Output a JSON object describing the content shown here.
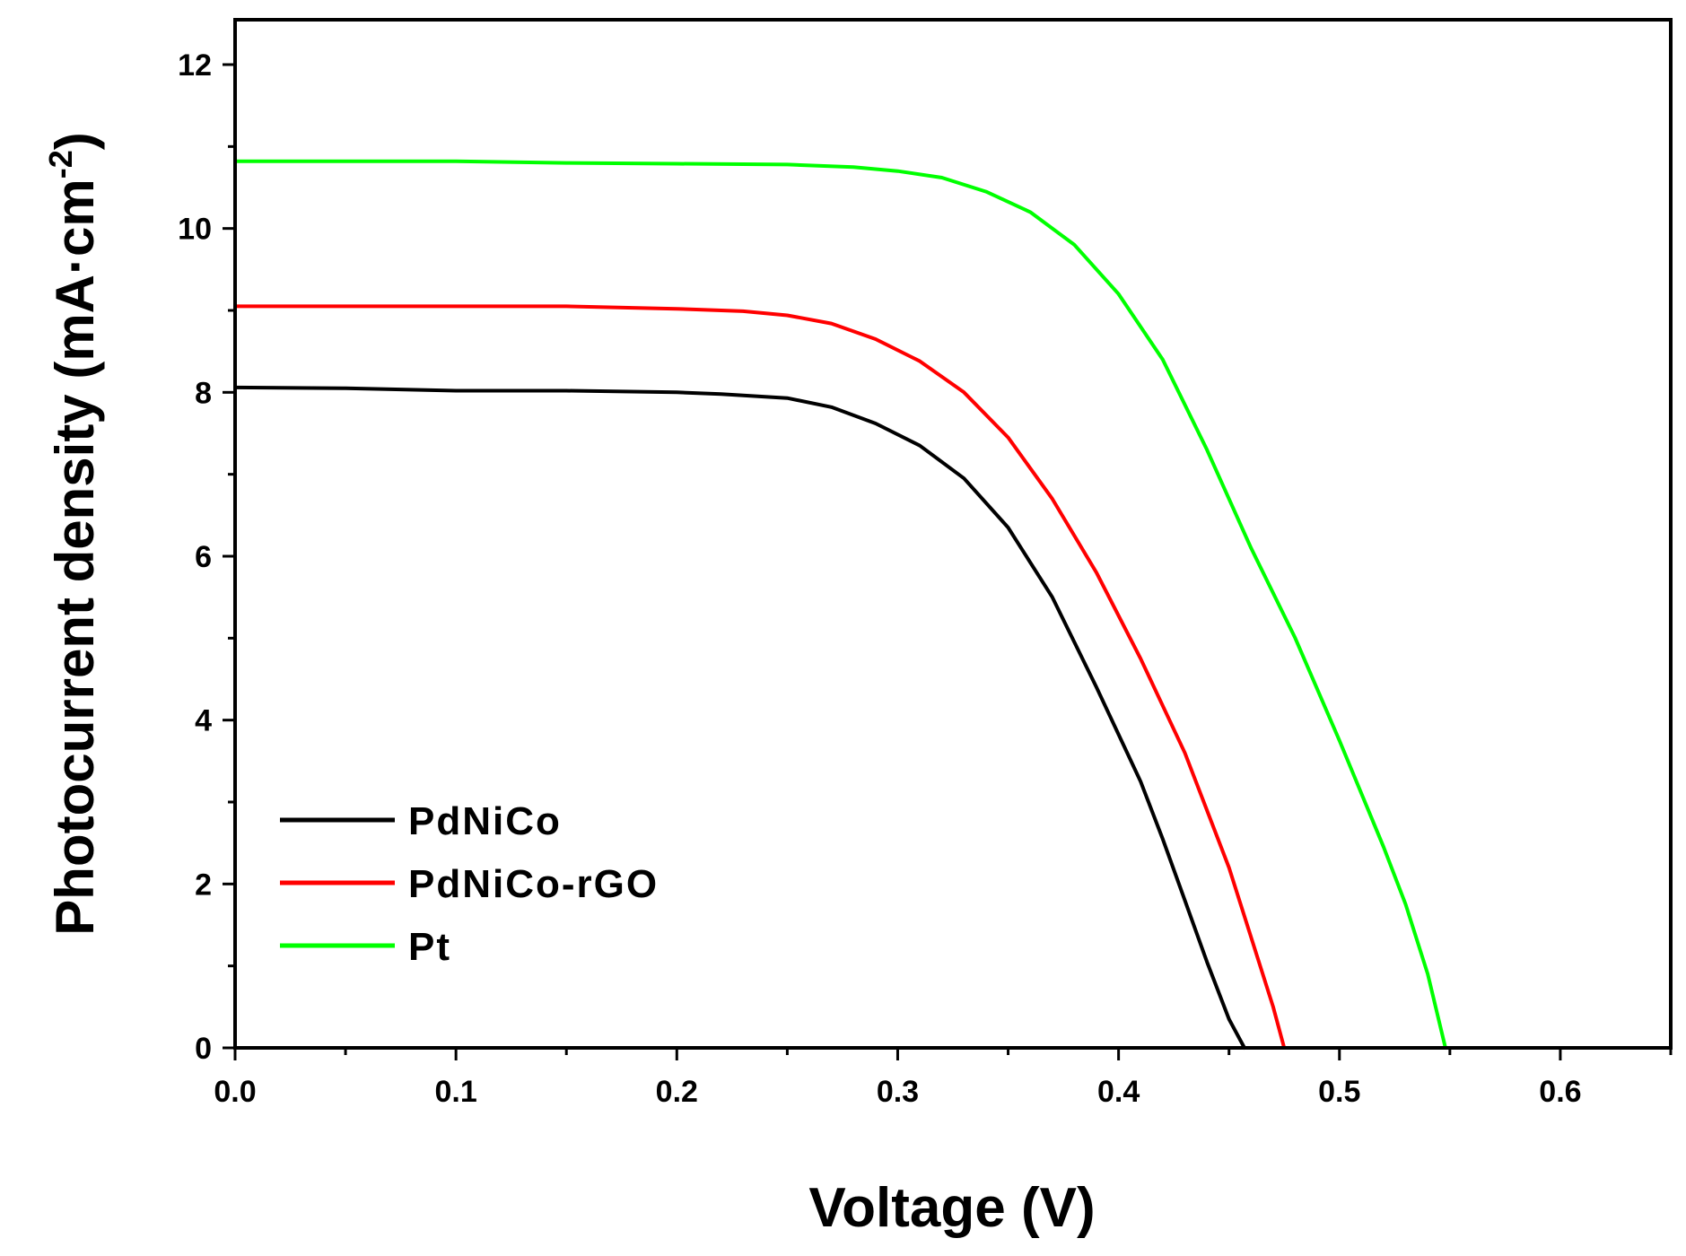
{
  "chart_data": {
    "type": "line",
    "title": "",
    "xlabel": "Voltage (V)",
    "ylabel": {
      "main": "Photocurrent density (mA·cm",
      "superscript": "-2",
      "close": ")"
    },
    "xlim": [
      0.0,
      0.65
    ],
    "ylim": [
      0,
      12.2
    ],
    "x_ticks": [
      {
        "value": 0.0,
        "label": "0.0"
      },
      {
        "value": 0.1,
        "label": "0.1"
      },
      {
        "value": 0.2,
        "label": "0.2"
      },
      {
        "value": 0.3,
        "label": "0.3"
      },
      {
        "value": 0.4,
        "label": "0.4"
      },
      {
        "value": 0.5,
        "label": "0.5"
      },
      {
        "value": 0.6,
        "label": "0.6"
      }
    ],
    "x_minor_ticks": [
      0.05,
      0.15,
      0.25,
      0.35,
      0.45,
      0.55,
      0.65
    ],
    "y_ticks": [
      {
        "value": 0,
        "label": "0"
      },
      {
        "value": 2,
        "label": "2"
      },
      {
        "value": 4,
        "label": "4"
      },
      {
        "value": 6,
        "label": "6"
      },
      {
        "value": 8,
        "label": "8"
      },
      {
        "value": 10,
        "label": "10"
      },
      {
        "value": 12,
        "label": "12"
      }
    ],
    "y_minor_ticks": [
      1,
      3,
      5,
      7,
      9,
      11
    ],
    "grid": false,
    "legend_position": "bottom-left",
    "series": [
      {
        "name": "PdNiCo",
        "color": "#000000",
        "points": [
          [
            0.0,
            8.06
          ],
          [
            0.05,
            8.05
          ],
          [
            0.1,
            8.02
          ],
          [
            0.15,
            8.02
          ],
          [
            0.2,
            8.0
          ],
          [
            0.22,
            7.98
          ],
          [
            0.25,
            7.93
          ],
          [
            0.27,
            7.82
          ],
          [
            0.29,
            7.62
          ],
          [
            0.31,
            7.35
          ],
          [
            0.33,
            6.95
          ],
          [
            0.35,
            6.35
          ],
          [
            0.37,
            5.5
          ],
          [
            0.39,
            4.4
          ],
          [
            0.41,
            3.25
          ],
          [
            0.42,
            2.55
          ],
          [
            0.43,
            1.8
          ],
          [
            0.44,
            1.05
          ],
          [
            0.45,
            0.35
          ],
          [
            0.457,
            0.0
          ]
        ]
      },
      {
        "name": "PdNiCo-rGO",
        "color": "#ff0000",
        "points": [
          [
            0.0,
            9.05
          ],
          [
            0.05,
            9.05
          ],
          [
            0.1,
            9.05
          ],
          [
            0.15,
            9.05
          ],
          [
            0.2,
            9.02
          ],
          [
            0.23,
            8.99
          ],
          [
            0.25,
            8.94
          ],
          [
            0.27,
            8.84
          ],
          [
            0.29,
            8.65
          ],
          [
            0.31,
            8.38
          ],
          [
            0.33,
            8.0
          ],
          [
            0.35,
            7.45
          ],
          [
            0.37,
            6.7
          ],
          [
            0.39,
            5.8
          ],
          [
            0.41,
            4.75
          ],
          [
            0.43,
            3.6
          ],
          [
            0.44,
            2.9
          ],
          [
            0.45,
            2.2
          ],
          [
            0.46,
            1.35
          ],
          [
            0.47,
            0.5
          ],
          [
            0.475,
            0.0
          ]
        ]
      },
      {
        "name": "Pt",
        "color": "#00ff00",
        "points": [
          [
            0.0,
            10.82
          ],
          [
            0.05,
            10.82
          ],
          [
            0.1,
            10.82
          ],
          [
            0.15,
            10.8
          ],
          [
            0.2,
            10.79
          ],
          [
            0.25,
            10.78
          ],
          [
            0.28,
            10.75
          ],
          [
            0.3,
            10.7
          ],
          [
            0.32,
            10.62
          ],
          [
            0.34,
            10.45
          ],
          [
            0.36,
            10.2
          ],
          [
            0.38,
            9.8
          ],
          [
            0.4,
            9.2
          ],
          [
            0.42,
            8.4
          ],
          [
            0.44,
            7.3
          ],
          [
            0.46,
            6.1
          ],
          [
            0.48,
            5.0
          ],
          [
            0.5,
            3.75
          ],
          [
            0.52,
            2.45
          ],
          [
            0.53,
            1.75
          ],
          [
            0.54,
            0.9
          ],
          [
            0.548,
            0.0
          ]
        ]
      }
    ]
  }
}
